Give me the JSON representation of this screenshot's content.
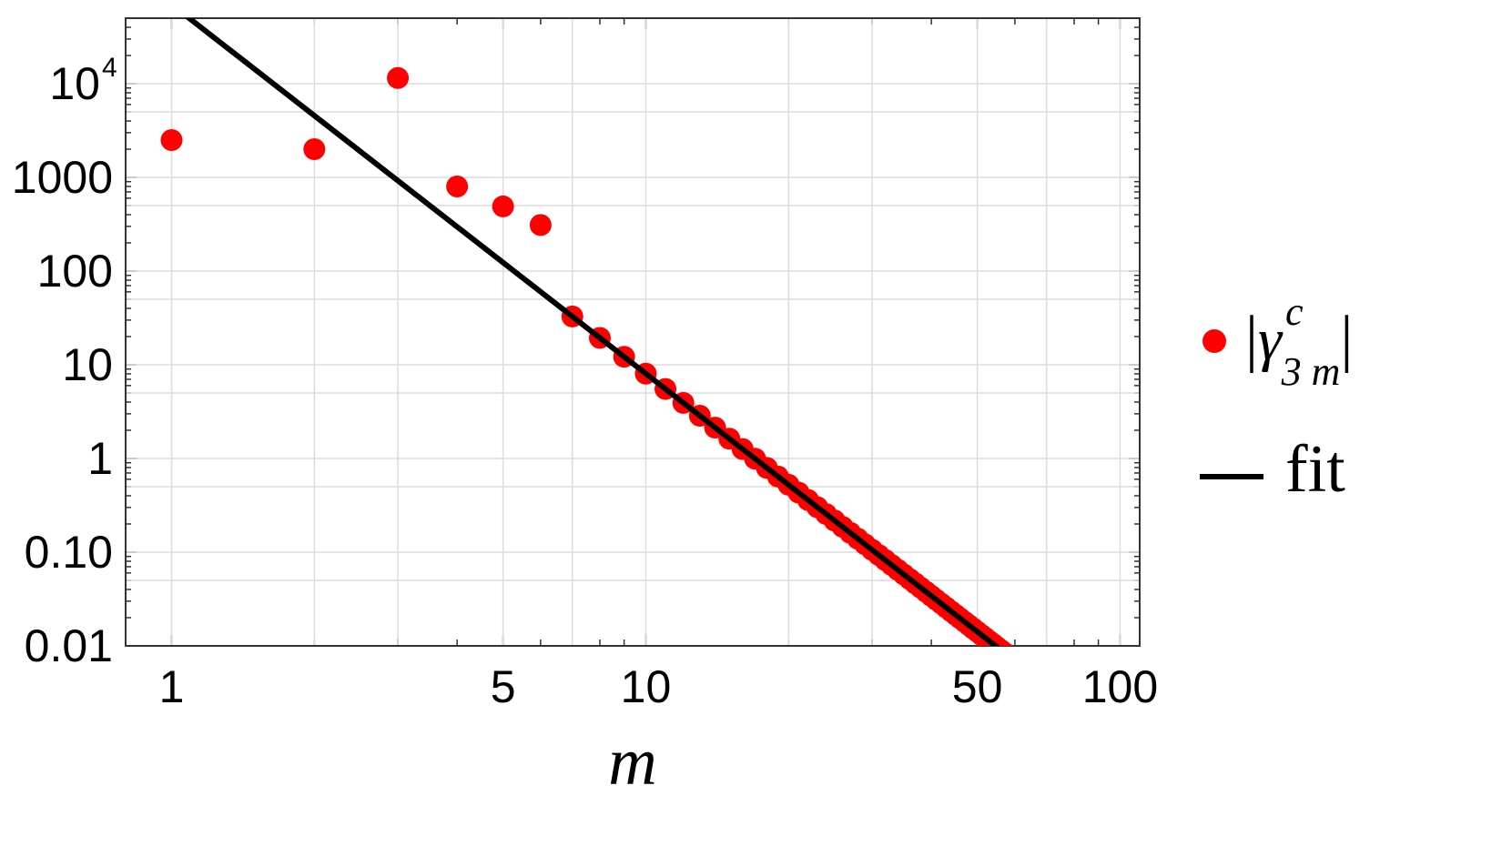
{
  "chart_data": {
    "type": "scatter",
    "xscale": "log",
    "yscale": "log",
    "xlabel": "m",
    "ylabel": "",
    "xlim": [
      0.8,
      110
    ],
    "ylim": [
      0.01,
      50000
    ],
    "grid": true,
    "legend_position": "right",
    "x_ticks": [
      {
        "value": 1,
        "label": "1"
      },
      {
        "value": 5,
        "label": "5"
      },
      {
        "value": 10,
        "label": "10"
      },
      {
        "value": 50,
        "label": "50"
      },
      {
        "value": 100,
        "label": "100"
      }
    ],
    "y_ticks": [
      {
        "value": 0.01,
        "label": "0.01"
      },
      {
        "value": 0.1,
        "label": "0.10"
      },
      {
        "value": 1,
        "label": "1"
      },
      {
        "value": 10,
        "label": "10"
      },
      {
        "value": 100,
        "label": "100"
      },
      {
        "value": 1000,
        "label": "1000"
      },
      {
        "value": 10000,
        "label": "10",
        "exponent": "4"
      }
    ],
    "scatter": {
      "color": "#ff0000",
      "legend": {
        "symbol": "γ",
        "sup": "c",
        "sub": "3 m"
      },
      "first_points": [
        [
          1,
          2500
        ],
        [
          2,
          2000
        ],
        [
          3,
          11500
        ],
        [
          4,
          800
        ],
        [
          5,
          490
        ],
        [
          6,
          310
        ]
      ],
      "tail": {
        "from": 7,
        "to": 100,
        "c": 70000,
        "p": 3.94
      }
    },
    "fit": {
      "color": "#000000",
      "label": "fit",
      "c": 70000,
      "p": 3.94
    }
  }
}
